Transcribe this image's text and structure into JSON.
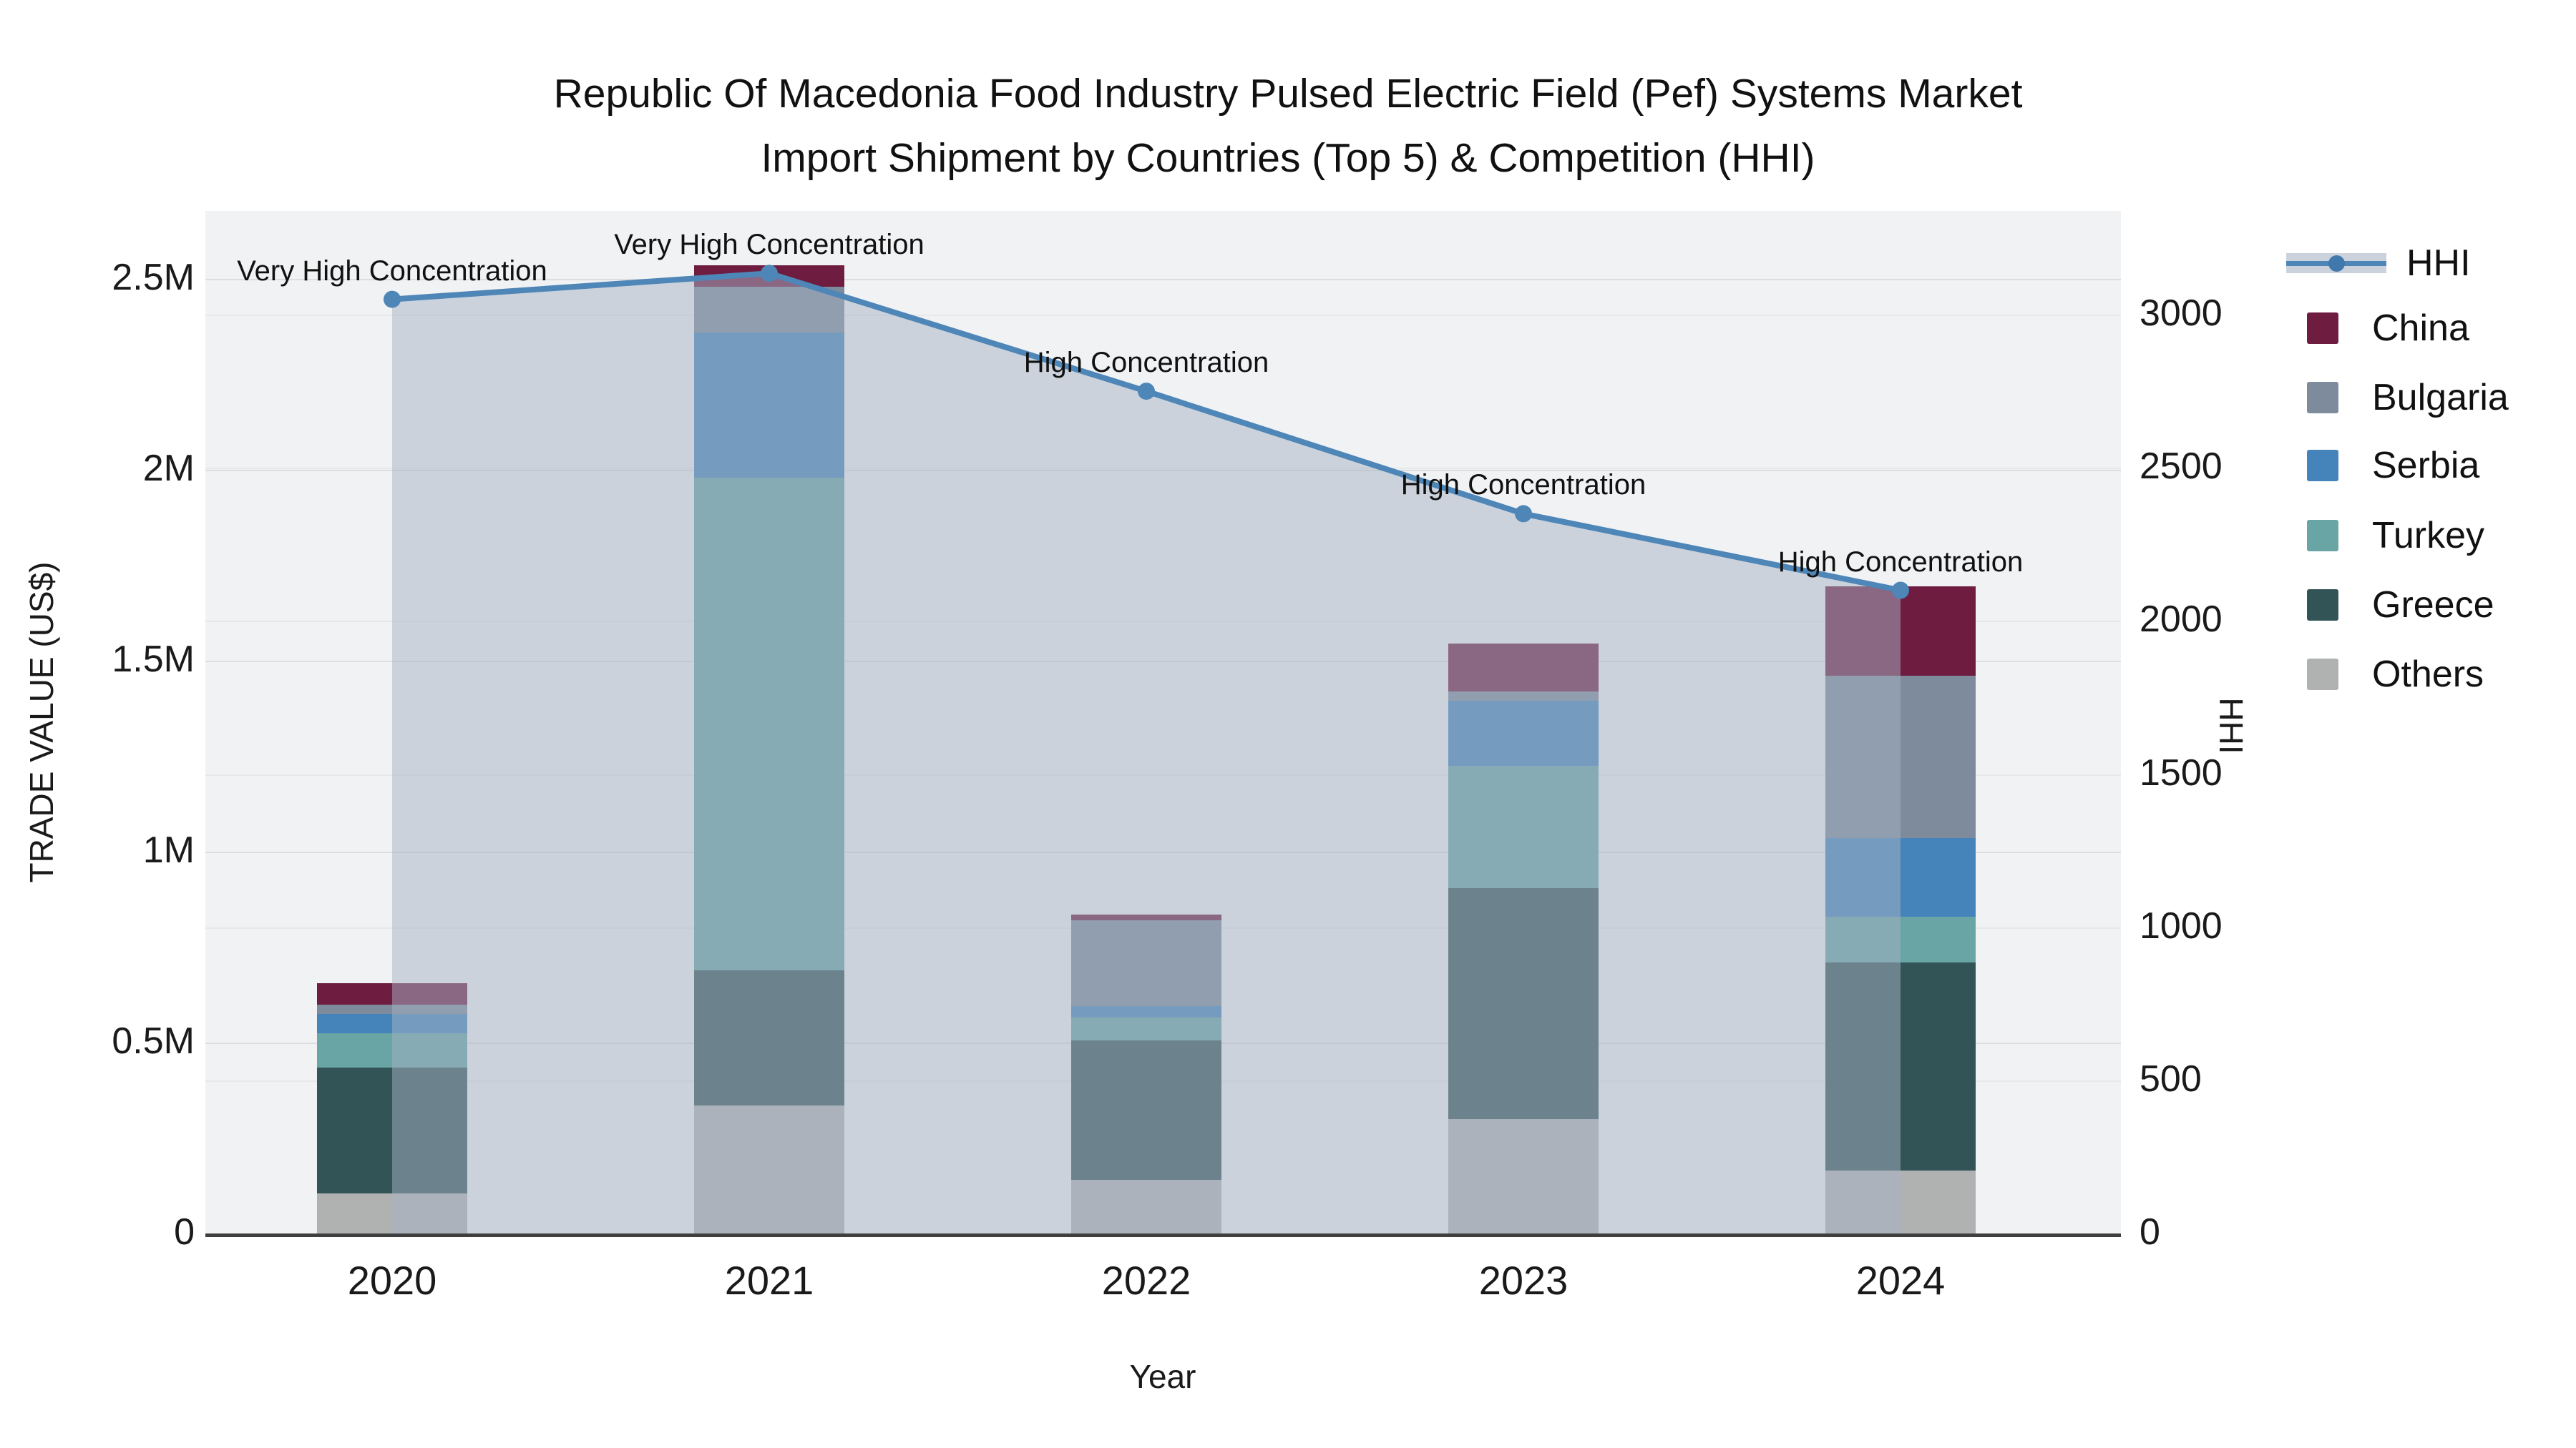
{
  "title_line1": "Republic Of Macedonia Food Industry Pulsed Electric Field (Pef) Systems Market",
  "title_line2": "Import Shipment by Countries (Top 5) & Competition (HHI)",
  "chart_data": {
    "type": "combo: stacked bar (trade value by country) + line (HHI)",
    "title": "Republic Of Macedonia Food Industry Pulsed Electric Field (Pef) Systems Market Import Shipment by Countries (Top 5) & Competition (HHI)",
    "xlabel": "Year",
    "ylabel": "TRADE VALUE (US$)",
    "y2label": "HHI",
    "categories": [
      "2020",
      "2021",
      "2022",
      "2023",
      "2024"
    ],
    "series": [
      {
        "name": "China",
        "color": "#6e1c40",
        "values_usd": [
          55000,
          55000,
          15000,
          125000,
          235000
        ]
      },
      {
        "name": "Bulgaria",
        "color": "#7d8b9d",
        "values_usd": [
          25000,
          120000,
          225000,
          25000,
          425000
        ]
      },
      {
        "name": "Serbia",
        "color": "#4484bb",
        "values_usd": [
          50000,
          380000,
          30000,
          170000,
          205000
        ]
      },
      {
        "name": "Turkey",
        "color": "#68a5a4",
        "values_usd": [
          90000,
          1290000,
          60000,
          320000,
          120000
        ]
      },
      {
        "name": "Greece",
        "color": "#335456",
        "values_usd": [
          330000,
          355000,
          365000,
          605000,
          545000
        ]
      },
      {
        "name": "Others",
        "color": "#b0b2b2",
        "values_usd": [
          105000,
          335000,
          140000,
          300000,
          165000
        ]
      }
    ],
    "stack_order_bottom_to_top": [
      "Others",
      "Greece",
      "Turkey",
      "Serbia",
      "Bulgaria",
      "China"
    ],
    "totals_usd": [
      655000,
      2535000,
      835000,
      1545000,
      1695000
    ],
    "hhi": {
      "name": "HHI",
      "line_color": "#4e86b8",
      "fill_color": "rgba(165,178,196,0.5)",
      "values": [
        3050,
        3135,
        2750,
        2350,
        2100
      ],
      "annotations": [
        "Very High Concentration",
        "Very High Concentration",
        "High Concentration",
        "High Concentration",
        "High Concentration"
      ]
    },
    "y_ticks": [
      {
        "usd": 0,
        "label": "0"
      },
      {
        "usd": 500000,
        "label": "0.5M"
      },
      {
        "usd": 1000000,
        "label": "1M"
      },
      {
        "usd": 1500000,
        "label": "1.5M"
      },
      {
        "usd": 2000000,
        "label": "2M"
      },
      {
        "usd": 2500000,
        "label": "2.5M"
      }
    ],
    "y2_ticks": [
      {
        "hhi": 0,
        "label": "0"
      },
      {
        "hhi": 500,
        "label": "500"
      },
      {
        "hhi": 1000,
        "label": "1000"
      },
      {
        "hhi": 1500,
        "label": "1500"
      },
      {
        "hhi": 2000,
        "label": "2000"
      },
      {
        "hhi": 2500,
        "label": "2500"
      },
      {
        "hhi": 3000,
        "label": "3000"
      }
    ],
    "ylim_usd": [
      0,
      2678000
    ],
    "y2lim": [
      0,
      3340
    ],
    "grid": true,
    "legend_position": "right",
    "legend_entries": [
      "HHI",
      "China",
      "Bulgaria",
      "Serbia",
      "Turkey",
      "Greece",
      "Others"
    ]
  }
}
